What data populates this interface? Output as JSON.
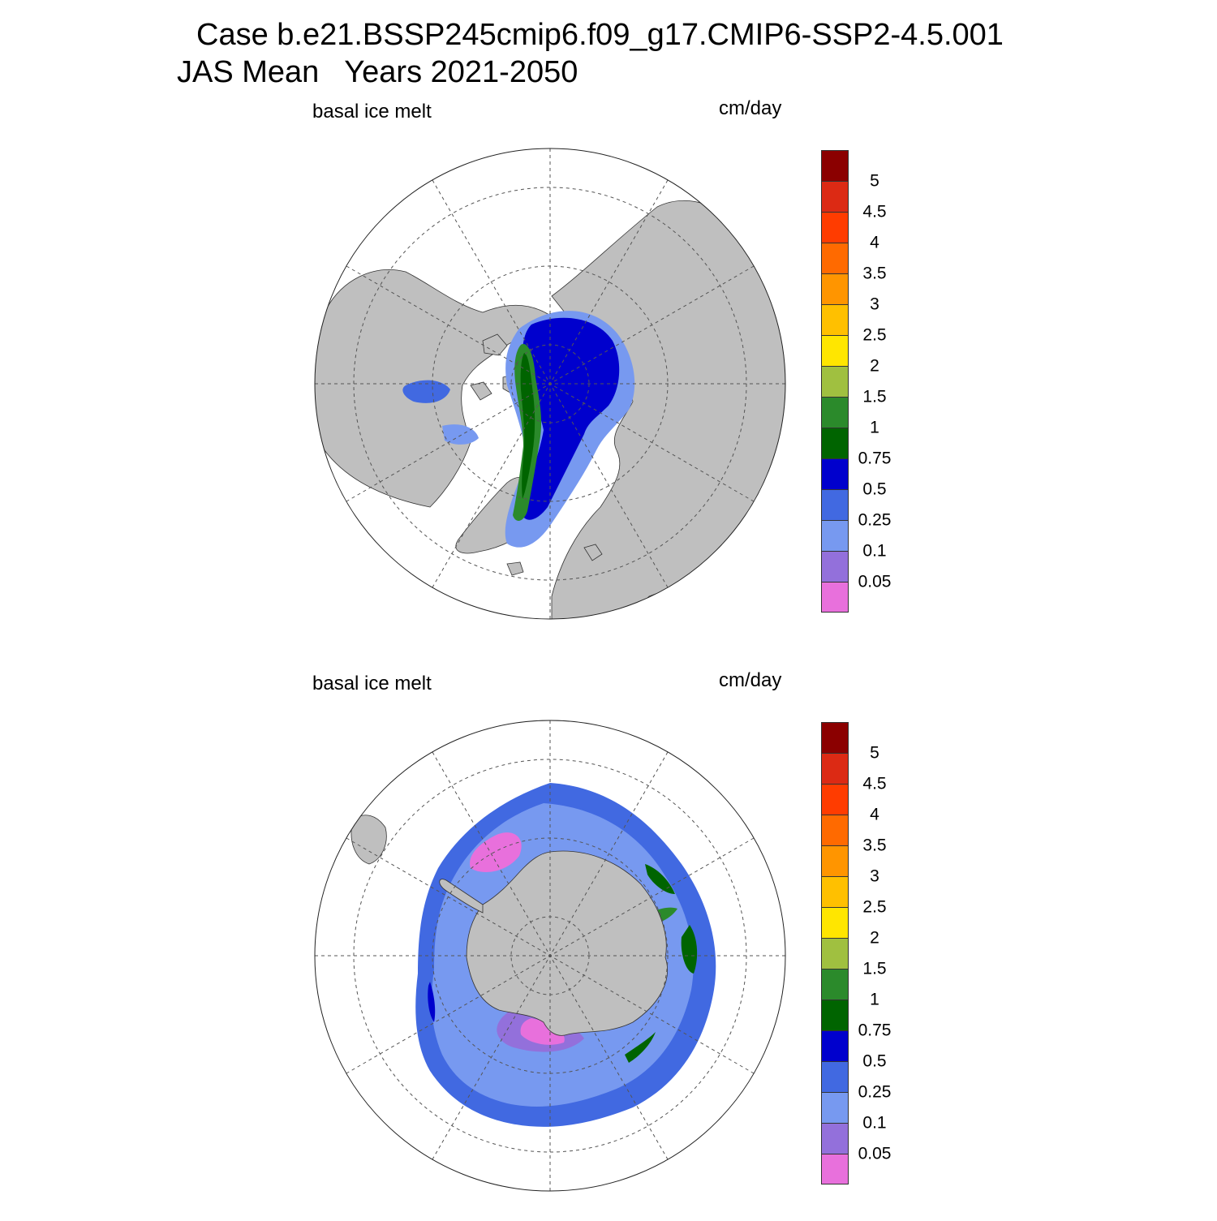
{
  "header": {
    "line1": "Case b.e21.BSSP245cmip6.f09_g17.CMIP6-SSP2-4.5.001",
    "line2": "JAS Mean   Years 2021-2050"
  },
  "panels": [
    {
      "id": "north",
      "hemisphere": "Northern Hemisphere (Arctic)",
      "variable_label": "basal ice melt",
      "units_label": "cm/day"
    },
    {
      "id": "south",
      "hemisphere": "Southern Hemisphere (Antarctic)",
      "variable_label": "basal ice melt",
      "units_label": "cm/day"
    }
  ],
  "colorbar": {
    "tick_labels": [
      "5",
      "4.5",
      "4",
      "3.5",
      "3",
      "2.5",
      "2",
      "1.5",
      "1",
      "0.75",
      "0.5",
      "0.25",
      "0.1",
      "0.05"
    ],
    "colors_top_to_bottom": [
      "#8b0000",
      "#dc2a14",
      "#ff3c00",
      "#ff6a00",
      "#ff9500",
      "#ffc000",
      "#ffe600",
      "#a0c040",
      "#2b8a2b",
      "#006400",
      "#0000cd",
      "#4169e1",
      "#7799f0",
      "#9370db",
      "#e870dc"
    ]
  },
  "map_style": {
    "land_color": "#bfbfbf",
    "ocean_color": "#ffffff",
    "grid_style": "dashed"
  }
}
